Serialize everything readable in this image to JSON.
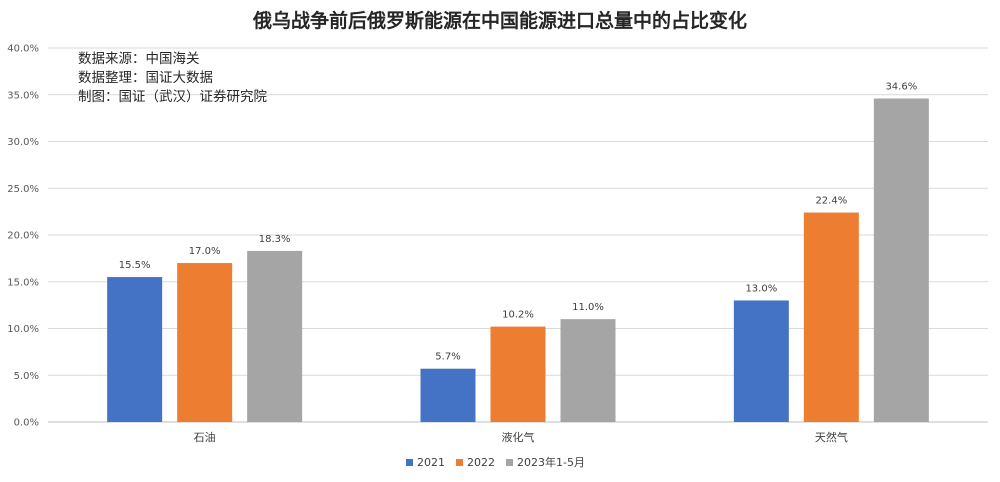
{
  "chart_data": {
    "type": "bar",
    "title": "俄乌战争前后俄罗斯能源在中国能源进口总量中的占比变化",
    "categories": [
      "石油",
      "液化气",
      "天然气"
    ],
    "series": [
      {
        "name": "2021",
        "values": [
          15.5,
          5.7,
          13.0
        ],
        "color": "#4472c4"
      },
      {
        "name": "2022",
        "values": [
          17.0,
          10.2,
          22.4
        ],
        "color": "#ed7d31"
      },
      {
        "name": "2023年1-5月",
        "values": [
          18.3,
          11.0,
          34.6
        ],
        "color": "#a5a5a5"
      }
    ],
    "ylim": [
      0,
      40
    ],
    "yticks": [
      0,
      5,
      10,
      15,
      20,
      25,
      30,
      35,
      40
    ],
    "y_tick_format": "percent_1dp",
    "grid": true,
    "legend_position": "bottom",
    "annotations": [
      "数据来源：中国海关",
      "数据整理：国证大数据",
      "制图：国证（武汉）证券研究院"
    ]
  }
}
